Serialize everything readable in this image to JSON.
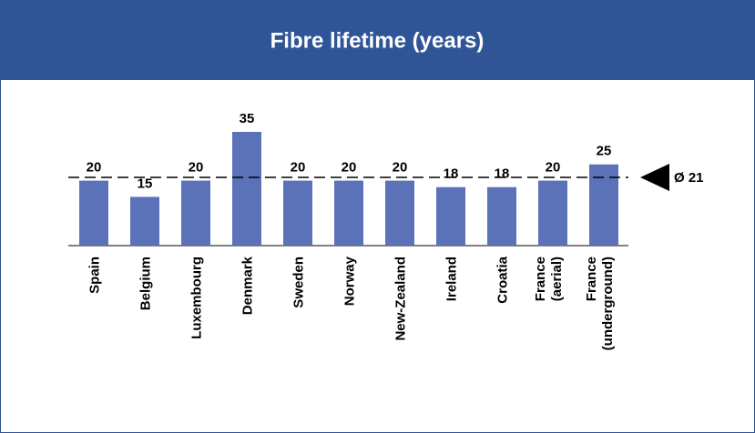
{
  "chart_data": {
    "type": "bar",
    "title": "Fibre lifetime (years)",
    "categories": [
      "Spain",
      "Belgium",
      "Luxembourg",
      "Denmark",
      "Sweden",
      "Norway",
      "New-Zealand",
      "Ireland",
      "Croatia",
      "France (aerial)",
      "France (underground)"
    ],
    "values": [
      20,
      15,
      20,
      35,
      20,
      20,
      20,
      18,
      18,
      20,
      25
    ],
    "color": "#5b72b9",
    "average": 21,
    "average_label": "Ø 21"
  }
}
